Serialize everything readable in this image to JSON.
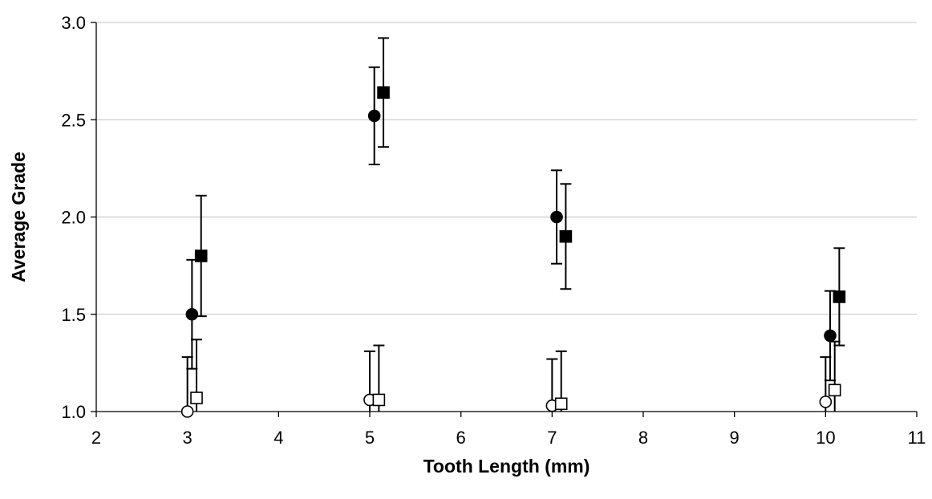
{
  "chart_data": {
    "type": "scatter",
    "title": "",
    "xlabel": "Tooth Length (mm)",
    "ylabel": "Average Grade",
    "xlim": [
      2,
      11
    ],
    "ylim": [
      1.0,
      3.0
    ],
    "x_ticks": [
      2,
      3,
      4,
      5,
      6,
      7,
      8,
      9,
      10,
      11
    ],
    "y_ticks": [
      1.0,
      1.5,
      2.0,
      2.5,
      3.0
    ],
    "y_tick_labels": [
      "1.0",
      "1.5",
      "2.0",
      "2.5",
      "3.0"
    ],
    "grid": "horizontal",
    "legend": "none",
    "series": [
      {
        "marker": "filled-circle",
        "color": "#000000",
        "points": [
          {
            "x": 3.05,
            "y": 1.5,
            "err_low": 0.28,
            "err_high": 0.28
          },
          {
            "x": 5.05,
            "y": 2.52,
            "err_low": 0.25,
            "err_high": 0.25
          },
          {
            "x": 7.05,
            "y": 2.0,
            "err_low": 0.24,
            "err_high": 0.24
          },
          {
            "x": 10.05,
            "y": 1.39,
            "err_low": 0.23,
            "err_high": 0.23
          }
        ]
      },
      {
        "marker": "filled-square",
        "color": "#000000",
        "points": [
          {
            "x": 3.15,
            "y": 1.8,
            "err_low": 0.31,
            "err_high": 0.31
          },
          {
            "x": 5.15,
            "y": 2.64,
            "err_low": 0.28,
            "err_high": 0.28
          },
          {
            "x": 7.15,
            "y": 1.9,
            "err_low": 0.27,
            "err_high": 0.27
          },
          {
            "x": 10.15,
            "y": 1.59,
            "err_low": 0.25,
            "err_high": 0.25
          }
        ]
      },
      {
        "marker": "open-circle",
        "color": "#000000",
        "points": [
          {
            "x": 3.0,
            "y": 1.0,
            "err_low": 0.28,
            "err_high": 0.28
          },
          {
            "x": 5.0,
            "y": 1.06,
            "err_low": 0.25,
            "err_high": 0.25
          },
          {
            "x": 7.0,
            "y": 1.03,
            "err_low": 0.24,
            "err_high": 0.24
          },
          {
            "x": 10.0,
            "y": 1.05,
            "err_low": 0.23,
            "err_high": 0.23
          }
        ]
      },
      {
        "marker": "open-square",
        "color": "#000000",
        "points": [
          {
            "x": 3.1,
            "y": 1.07,
            "err_low": 0.3,
            "err_high": 0.3
          },
          {
            "x": 5.1,
            "y": 1.06,
            "err_low": 0.28,
            "err_high": 0.28
          },
          {
            "x": 7.1,
            "y": 1.04,
            "err_low": 0.27,
            "err_high": 0.27
          },
          {
            "x": 10.1,
            "y": 1.11,
            "err_low": 0.25,
            "err_high": 0.25
          }
        ]
      }
    ]
  }
}
